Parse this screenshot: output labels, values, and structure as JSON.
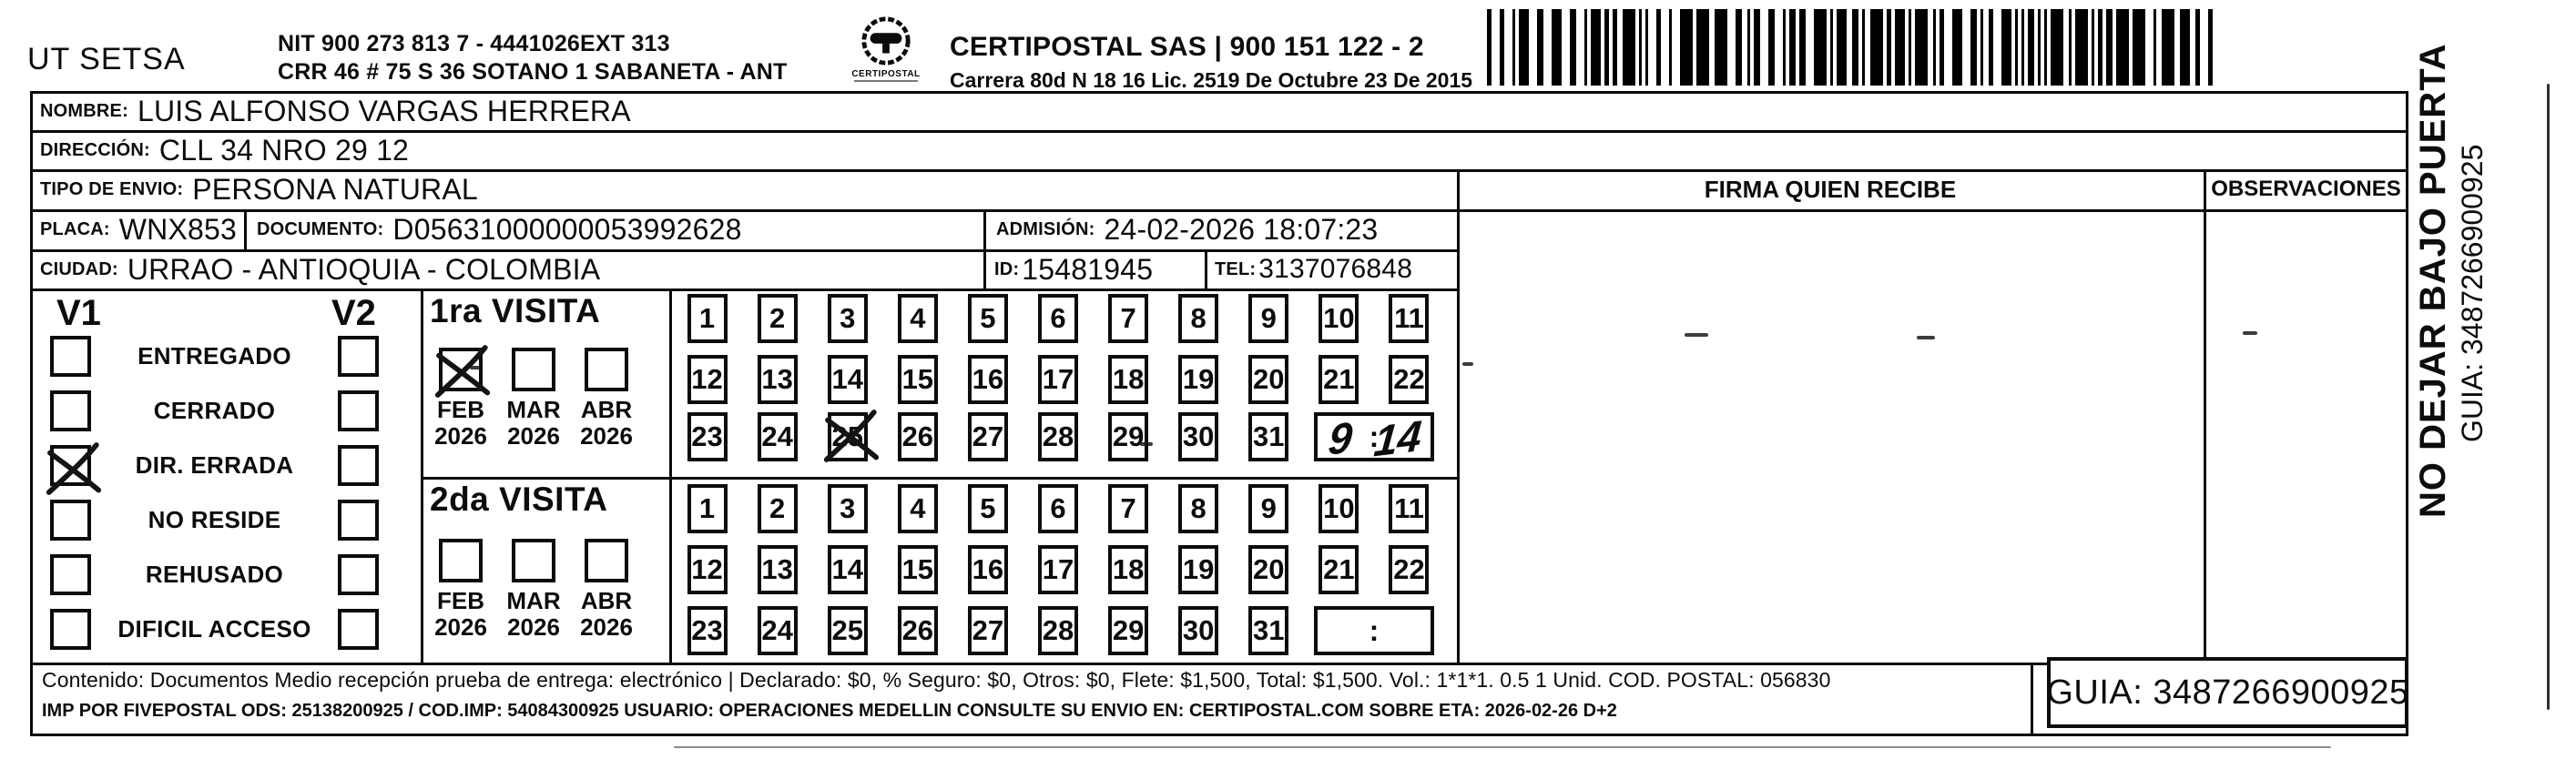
{
  "colors": {
    "ink": "#0c0c0c",
    "paper": "#ffffff"
  },
  "header": {
    "company": "UT SETSA",
    "nit_line1": "NIT 900 273 813 7 - 4441026EXT 313",
    "nit_line2": "CRR 46 # 75 S 36 SOTANO 1 SABANETA - ANT",
    "logo_label": "CERTIPOSTAL",
    "carrier_line1": "CERTIPOSTAL SAS | 900 151 122 - 2",
    "carrier_line2": "Carrera 80d N 18 16 Lic. 2519 De Octubre 23 De 2015"
  },
  "recipient": {
    "nombre_label": "NOMBRE:",
    "nombre": "LUIS ALFONSO VARGAS HERRERA",
    "direccion_label": "DIRECCIÓN:",
    "direccion": "CLL 34 NRO 29 12",
    "tipo_envio_label": "TIPO DE ENVIO:",
    "tipo_envio": "PERSONA NATURAL",
    "placa_label": "PLACA:",
    "placa": "WNX853",
    "documento_label": "DOCUMENTO:",
    "documento": "D05631000000053992628",
    "admision_label": "ADMISIÓN:",
    "admision": "24-02-2026 18:07:23",
    "ciudad_label": "CIUDAD:",
    "ciudad": "URRAO - ANTIOQUIA - COLOMBIA",
    "id_label": "ID:",
    "id": "15481945",
    "tel_label": "TEL:",
    "tel": "3137076848"
  },
  "right_panel": {
    "firma_header": "FIRMA QUIEN RECIBE",
    "observaciones_header": "OBSERVACIONES"
  },
  "status": {
    "v1_label": "V1",
    "v2_label": "V2",
    "options": [
      {
        "label": "ENTREGADO",
        "v1": false,
        "v2": false
      },
      {
        "label": "CERRADO",
        "v1": false,
        "v2": false
      },
      {
        "label": "DIR. ERRADA",
        "v1": true,
        "v2": false
      },
      {
        "label": "NO RESIDE",
        "v1": false,
        "v2": false
      },
      {
        "label": "REHUSADO",
        "v1": false,
        "v2": false
      },
      {
        "label": "DIFICIL ACCESO",
        "v1": false,
        "v2": false
      }
    ]
  },
  "visits": [
    {
      "title": "1ra VISITA",
      "months": [
        {
          "month": "FEB",
          "year": "2026",
          "checked": true
        },
        {
          "month": "MAR",
          "year": "2026",
          "checked": false
        },
        {
          "month": "ABR",
          "year": "2026",
          "checked": false
        }
      ],
      "crossed_days": [
        25
      ],
      "handwritten_time": "9:14"
    },
    {
      "title": "2da VISITA",
      "months": [
        {
          "month": "FEB",
          "year": "2026",
          "checked": false
        },
        {
          "month": "MAR",
          "year": "2026",
          "checked": false
        },
        {
          "month": "ABR",
          "year": "2026",
          "checked": false
        }
      ],
      "crossed_days": [],
      "handwritten_time": ""
    }
  ],
  "day_grid": {
    "rows": [
      [
        1,
        2,
        3,
        4,
        5,
        6,
        7,
        8,
        9,
        10,
        11
      ],
      [
        12,
        13,
        14,
        15,
        16,
        17,
        18,
        19,
        20,
        21,
        22
      ],
      [
        23,
        24,
        25,
        26,
        27,
        28,
        29,
        30,
        31
      ]
    ],
    "time_separator": ":"
  },
  "side_note": {
    "line1": "NO DEJAR BAJO PUERTA",
    "line2": "GUIA: 3487266900925"
  },
  "footer": {
    "line1": "Contenido: Documentos Medio recepción prueba de entrega: electrónico | Declarado: $0, % Seguro: $0, Otros: $0, Flete: $1,500, Total: $1,500. Vol.: 1*1*1. 0.5 1 Unid. COD. POSTAL: 056830",
    "line2": "IMP POR FIVEPOSTAL ODS: 25138200925 / COD.IMP: 54084300925 USUARIO: OPERACIONES MEDELLIN CONSULTE SU ENVIO EN: CERTIPOSTAL.COM SOBRE ETA: 2026-02-26 D+2",
    "guia": "GUIA: 3487266900925"
  }
}
